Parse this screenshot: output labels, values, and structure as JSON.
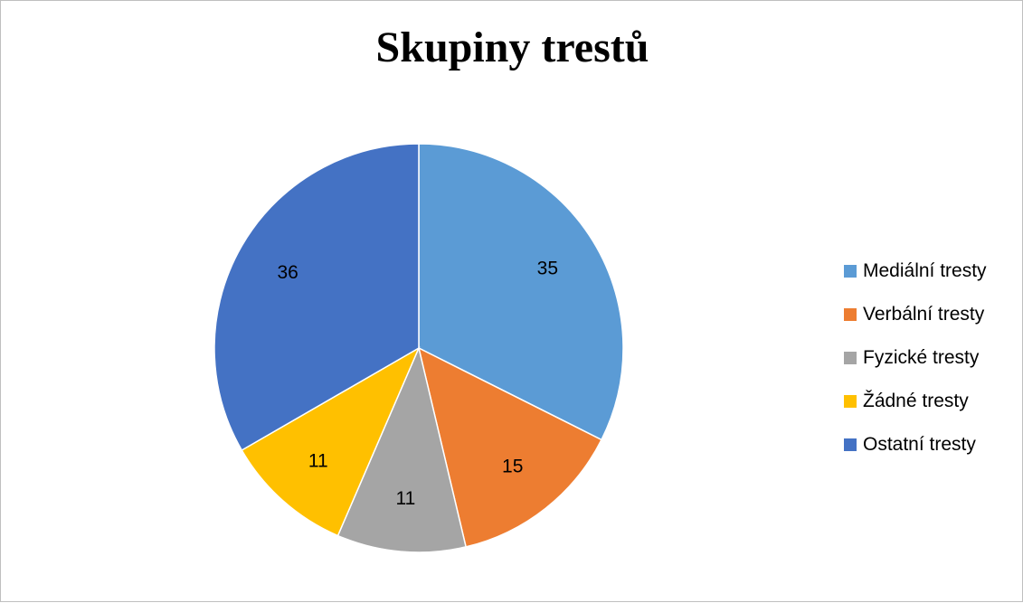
{
  "chart_data": {
    "type": "pie",
    "title": "Skupiny trestů",
    "legend_position": "right",
    "categories": [
      "Mediální tresty",
      "Verbální tresty",
      "Fyzické tresty",
      "Žádné tresty",
      "Ostatní tresty"
    ],
    "values": [
      35,
      15,
      11,
      11,
      36
    ],
    "colors": [
      "#5b9bd5",
      "#ed7d31",
      "#a5a5a5",
      "#ffc000",
      "#4472c4"
    ]
  }
}
